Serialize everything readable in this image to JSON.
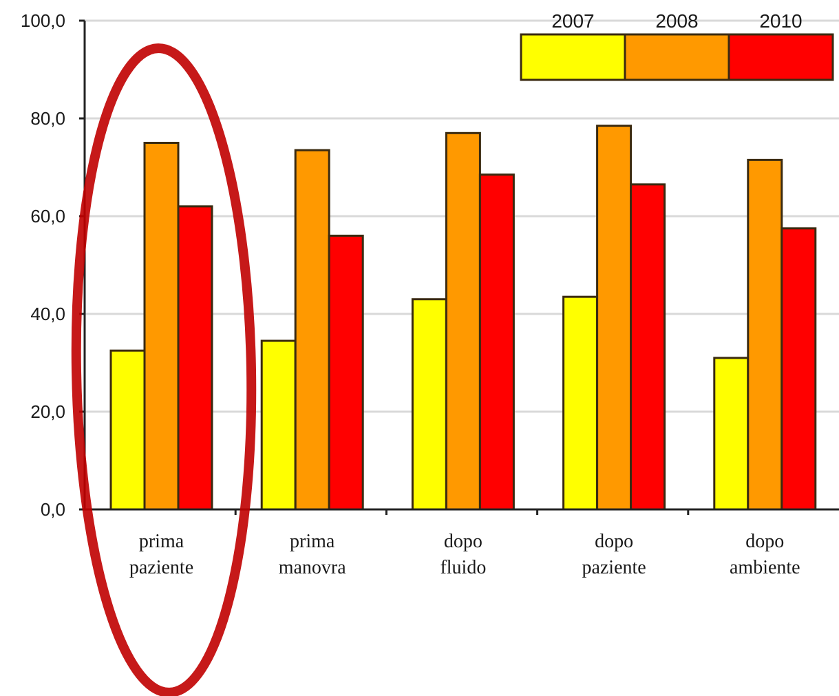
{
  "chart_data": {
    "type": "bar",
    "title": "",
    "xlabel": "",
    "ylabel": "",
    "ylim": [
      0,
      100
    ],
    "yticks": [
      "0,0",
      "20,0",
      "40,0",
      "60,0",
      "80,0",
      "100,0"
    ],
    "grid": true,
    "legend_position": "top-right",
    "categories": [
      [
        "prima",
        "paziente"
      ],
      [
        "prima",
        "manovra"
      ],
      [
        "dopo",
        "fluido"
      ],
      [
        "dopo",
        "paziente"
      ],
      [
        "dopo",
        "ambiente"
      ]
    ],
    "series": [
      {
        "name": "2007",
        "color": "#ffff00",
        "values": [
          32.5,
          34.5,
          43.0,
          43.5,
          31.0
        ]
      },
      {
        "name": "2008",
        "color": "#ff9900",
        "values": [
          75.0,
          73.5,
          77.0,
          78.5,
          71.5
        ]
      },
      {
        "name": "2010",
        "color": "#ff0000",
        "values": [
          62.0,
          56.0,
          68.5,
          66.5,
          57.5
        ]
      }
    ],
    "annotations": [
      {
        "type": "ellipse",
        "target_category": "prima paziente",
        "color": "#c00000"
      }
    ]
  }
}
